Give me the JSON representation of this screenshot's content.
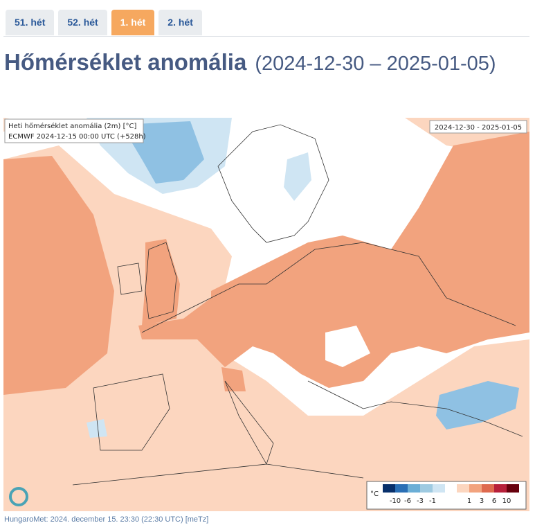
{
  "tabs": [
    "51. hét",
    "52. hét",
    "1. hét",
    "2. hét"
  ],
  "header": {
    "title": "Hőmérséklet anomália",
    "period": "(2024-12-30 – 2025-01-05)"
  },
  "map": {
    "caption_line1": "Heti hőmérséklet anomália (2m) [°C]",
    "caption_line2": "ECMWF 2024-12-15 00:00 UTC (+528h)",
    "date_range": "2024-12-30 - 2025-01-05",
    "legend": {
      "unit": "°C",
      "cold_labels": [
        "-10",
        "-6",
        "-3",
        "-1"
      ],
      "warm_labels": [
        "1",
        "3",
        "6",
        "10"
      ]
    }
  },
  "footer": "HungaroMet: 2024. december 15. 23:30 (22:30 UTC)  [meTz]"
}
